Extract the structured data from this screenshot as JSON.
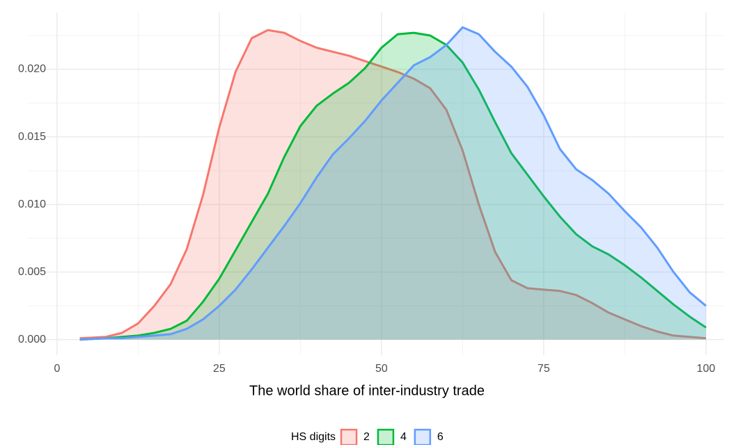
{
  "chart_data": {
    "type": "area",
    "xlabel": "The world share of inter-industry trade",
    "legend_title": "HS digits",
    "legend": "bottom",
    "grid": true,
    "x": [
      3.5,
      7.5,
      10,
      12.5,
      15,
      17.5,
      20,
      22.5,
      25,
      27.5,
      30,
      32.5,
      35,
      37.5,
      40,
      42.5,
      45,
      47.5,
      50,
      52.5,
      55,
      57.5,
      60,
      62.5,
      65,
      67.5,
      70,
      72.5,
      75,
      77.5,
      80,
      82.5,
      85,
      87.5,
      90,
      92.5,
      95,
      97.5,
      100
    ],
    "series": [
      {
        "name": "2",
        "color": "#F8766D",
        "values": [
          0.0001,
          0.0002,
          0.0005,
          0.0012,
          0.0025,
          0.0041,
          0.0067,
          0.0107,
          0.0157,
          0.0198,
          0.0223,
          0.0229,
          0.0227,
          0.0221,
          0.0216,
          0.0213,
          0.021,
          0.0206,
          0.0202,
          0.0198,
          0.0193,
          0.0186,
          0.017,
          0.014,
          0.01,
          0.0065,
          0.0044,
          0.0038,
          0.0037,
          0.0036,
          0.0033,
          0.0027,
          0.002,
          0.0015,
          0.001,
          0.0006,
          0.0003,
          0.0002,
          0.0001
        ]
      },
      {
        "name": "4",
        "color": "#00BA38",
        "values": [
          0.0,
          0.0001,
          0.0002,
          0.0003,
          0.0005,
          0.0008,
          0.0014,
          0.0028,
          0.0045,
          0.0066,
          0.0087,
          0.0108,
          0.0135,
          0.0158,
          0.0173,
          0.0182,
          0.019,
          0.0201,
          0.0216,
          0.0226,
          0.0227,
          0.0225,
          0.0218,
          0.0205,
          0.0185,
          0.0161,
          0.0138,
          0.0122,
          0.0106,
          0.0091,
          0.0078,
          0.0069,
          0.0063,
          0.0055,
          0.0046,
          0.0036,
          0.0026,
          0.0017,
          0.0009
        ]
      },
      {
        "name": "6",
        "color": "#619CFF",
        "values": [
          0.0,
          0.0001,
          0.0001,
          0.0002,
          0.0003,
          0.0004,
          0.0008,
          0.0015,
          0.0025,
          0.0037,
          0.0052,
          0.0068,
          0.0084,
          0.0101,
          0.012,
          0.0137,
          0.0149,
          0.0162,
          0.0177,
          0.019,
          0.0203,
          0.0209,
          0.0218,
          0.0231,
          0.0226,
          0.0213,
          0.0202,
          0.0187,
          0.0166,
          0.0141,
          0.0126,
          0.0118,
          0.0108,
          0.0095,
          0.0083,
          0.0068,
          0.005,
          0.0035,
          0.0025
        ]
      }
    ],
    "xlim": [
      -4.5,
      102.8
    ],
    "ylim": [
      -0.00115,
      0.0242
    ],
    "xticks": [
      0,
      25,
      50,
      75,
      100
    ],
    "yticks": [
      {
        "value": 0,
        "label": "0.000"
      },
      {
        "value": 0.005,
        "label": "0.005"
      },
      {
        "value": 0.01,
        "label": "0.010"
      },
      {
        "value": 0.015,
        "label": "0.015"
      },
      {
        "value": 0.02,
        "label": "0.020"
      }
    ],
    "xminorticks": [
      12.5,
      37.5,
      62.5,
      87.5
    ],
    "yminorticks": [
      0.0025,
      0.0075,
      0.0125,
      0.0175,
      0.0225
    ]
  }
}
